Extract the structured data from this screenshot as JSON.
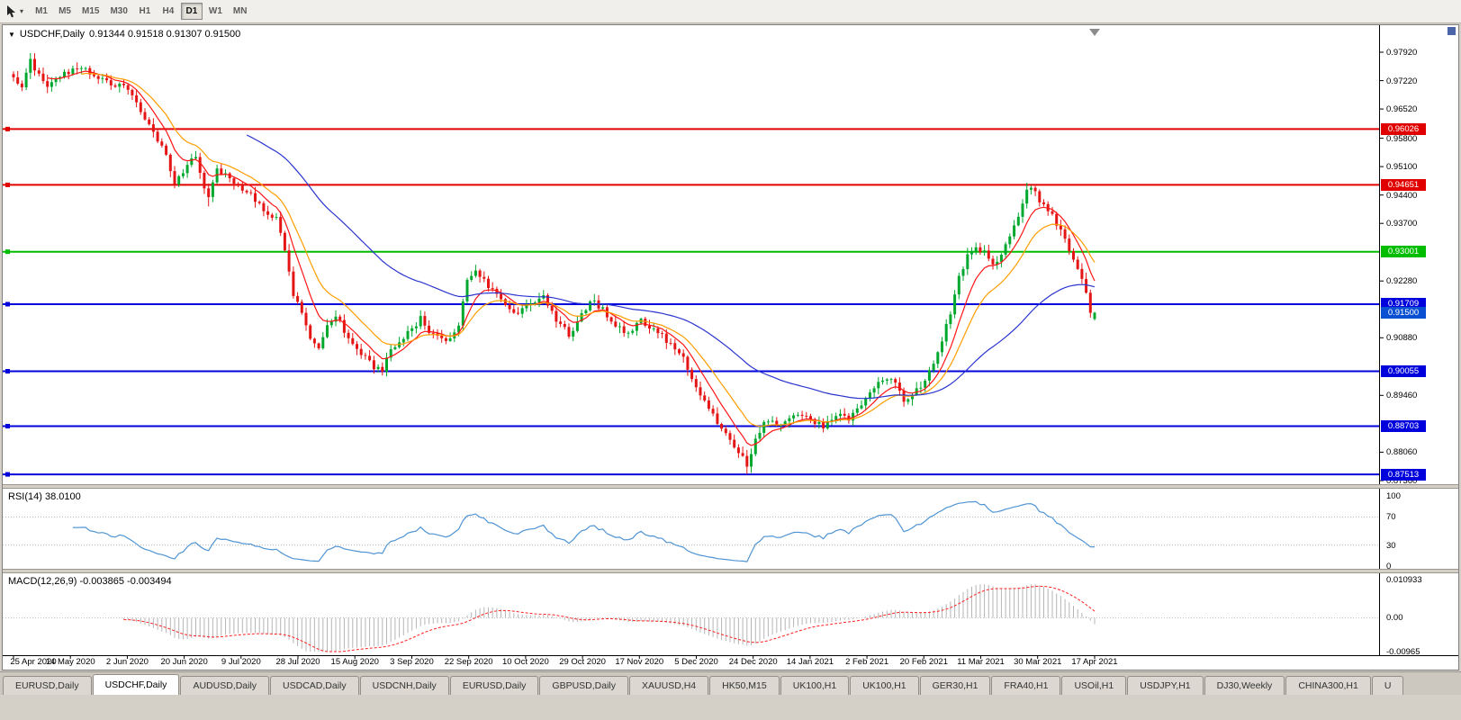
{
  "toolbar": {
    "timeframes": [
      "M1",
      "M5",
      "M15",
      "M30",
      "H1",
      "H4",
      "D1",
      "W1",
      "MN"
    ],
    "active_timeframe": "D1"
  },
  "chart": {
    "title": "USDCHF,Daily",
    "ohlc_readout": "0.91344 0.91518 0.91307 0.91500",
    "current_price_label": "0.91500",
    "current_price_value": 0.915,
    "current_price_color": "#0a50d2",
    "y_axis_ticks": [
      "0.97920",
      "0.97220",
      "0.96520",
      "0.95800",
      "0.95100",
      "0.94400",
      "0.93700",
      "0.92280",
      "0.90880",
      "0.89460",
      "0.88060",
      "0.87360"
    ]
  },
  "rsi_panel": {
    "label": "RSI(14) 38.0100",
    "axis_labels": [
      "100",
      "70",
      "30",
      "0"
    ]
  },
  "macd_panel": {
    "label": "MACD(12,26,9) -0.003865 -0.003494",
    "axis_labels": [
      "0.010933",
      "0.00",
      "-0.00965"
    ]
  },
  "tabs": [
    {
      "label": "EURUSD,Daily",
      "active": false
    },
    {
      "label": "USDCHF,Daily",
      "active": true
    },
    {
      "label": "AUDUSD,Daily",
      "active": false
    },
    {
      "label": "USDCAD,Daily",
      "active": false
    },
    {
      "label": "USDCNH,Daily",
      "active": false
    },
    {
      "label": "EURUSD,Daily",
      "active": false
    },
    {
      "label": "GBPUSD,Daily",
      "active": false
    },
    {
      "label": "XAUUSD,H4",
      "active": false
    },
    {
      "label": "HK50,M15",
      "active": false
    },
    {
      "label": "UK100,H1",
      "active": false
    },
    {
      "label": "UK100,H1",
      "active": false
    },
    {
      "label": "GER30,H1",
      "active": false
    },
    {
      "label": "FRA40,H1",
      "active": false
    },
    {
      "label": "USOil,H1",
      "active": false
    },
    {
      "label": "USDJPY,H1",
      "active": false
    },
    {
      "label": "DJ30,Weekly",
      "active": false
    },
    {
      "label": "CHINA300,H1",
      "active": false
    },
    {
      "label": "U",
      "active": false
    }
  ],
  "chart_data": {
    "type": "candlestick",
    "symbol": "USDCHF",
    "timeframe": "Daily",
    "candle_count": 256,
    "y_range": {
      "top": 0.9792,
      "bottom": 0.8736
    },
    "x_date_labels": [
      "25 Apr 2020",
      "14 May 2020",
      "2 Jun 2020",
      "20 Jun 2020",
      "9 Jul 2020",
      "28 Jul 2020",
      "15 Aug 2020",
      "3 Sep 2020",
      "22 Sep 2020",
      "10 Oct 2020",
      "29 Oct 2020",
      "17 Nov 2020",
      "5 Dec 2020",
      "24 Dec 2020",
      "14 Jan 2021",
      "2 Feb 2021",
      "20 Feb 2021",
      "11 Mar 2021",
      "30 Mar 2021",
      "17 Apr 2021"
    ],
    "ohlc_last": {
      "open": 0.91344,
      "high": 0.91518,
      "low": 0.91307,
      "close": 0.915
    },
    "colors": {
      "up": "#00a82e",
      "down": "#e51515"
    },
    "close_anchors": [
      [
        0,
        0.973
      ],
      [
        2,
        0.9704
      ],
      [
        4,
        0.9768
      ],
      [
        6,
        0.9738
      ],
      [
        8,
        0.9706
      ],
      [
        12,
        0.9742
      ],
      [
        17,
        0.9748
      ],
      [
        22,
        0.9716
      ],
      [
        27,
        0.97
      ],
      [
        31,
        0.963
      ],
      [
        35,
        0.9562
      ],
      [
        38,
        0.9472
      ],
      [
        40,
        0.9496
      ],
      [
        43,
        0.9536
      ],
      [
        46,
        0.9428
      ],
      [
        48,
        0.9502
      ],
      [
        51,
        0.9482
      ],
      [
        53,
        0.9466
      ],
      [
        56,
        0.9442
      ],
      [
        59,
        0.9406
      ],
      [
        62,
        0.9382
      ],
      [
        64,
        0.9302
      ],
      [
        66,
        0.9196
      ],
      [
        68,
        0.9152
      ],
      [
        70,
        0.9082
      ],
      [
        72,
        0.9062
      ],
      [
        74,
        0.9126
      ],
      [
        76,
        0.9146
      ],
      [
        79,
        0.9086
      ],
      [
        82,
        0.9052
      ],
      [
        85,
        0.9018
      ],
      [
        87,
        0.9008
      ],
      [
        89,
        0.9056
      ],
      [
        93,
        0.9098
      ],
      [
        96,
        0.9136
      ],
      [
        99,
        0.9092
      ],
      [
        102,
        0.9076
      ],
      [
        105,
        0.9122
      ],
      [
        107,
        0.9236
      ],
      [
        109,
        0.9258
      ],
      [
        111,
        0.9232
      ],
      [
        113,
        0.9202
      ],
      [
        116,
        0.9168
      ],
      [
        119,
        0.915
      ],
      [
        122,
        0.9176
      ],
      [
        125,
        0.919
      ],
      [
        128,
        0.9132
      ],
      [
        131,
        0.9096
      ],
      [
        134,
        0.9142
      ],
      [
        136,
        0.9182
      ],
      [
        139,
        0.916
      ],
      [
        142,
        0.9118
      ],
      [
        145,
        0.91
      ],
      [
        148,
        0.9132
      ],
      [
        151,
        0.911
      ],
      [
        154,
        0.9082
      ],
      [
        157,
        0.9056
      ],
      [
        160,
        0.8992
      ],
      [
        163,
        0.8932
      ],
      [
        166,
        0.8882
      ],
      [
        168,
        0.8856
      ],
      [
        170,
        0.8822
      ],
      [
        172,
        0.879
      ],
      [
        173,
        0.8764
      ],
      [
        175,
        0.8846
      ],
      [
        178,
        0.8886
      ],
      [
        181,
        0.8868
      ],
      [
        184,
        0.8902
      ],
      [
        188,
        0.8892
      ],
      [
        191,
        0.8866
      ],
      [
        194,
        0.8902
      ],
      [
        197,
        0.8882
      ],
      [
        201,
        0.8938
      ],
      [
        204,
        0.8982
      ],
      [
        207,
        0.8994
      ],
      [
        210,
        0.8932
      ],
      [
        213,
        0.8964
      ],
      [
        215,
        0.898
      ],
      [
        217,
        0.9032
      ],
      [
        219,
        0.9084
      ],
      [
        221,
        0.9152
      ],
      [
        223,
        0.9234
      ],
      [
        225,
        0.9294
      ],
      [
        227,
        0.9314
      ],
      [
        229,
        0.9296
      ],
      [
        231,
        0.9264
      ],
      [
        233,
        0.9296
      ],
      [
        235,
        0.9332
      ],
      [
        237,
        0.9392
      ],
      [
        239,
        0.9448
      ],
      [
        240,
        0.9462
      ],
      [
        242,
        0.9428
      ],
      [
        244,
        0.9402
      ],
      [
        246,
        0.937
      ],
      [
        248,
        0.9332
      ],
      [
        250,
        0.9284
      ],
      [
        252,
        0.923
      ],
      [
        254,
        0.9156
      ],
      [
        255,
        0.915
      ]
    ],
    "forced_extremes": [
      {
        "i": 4,
        "high": 0.979
      },
      {
        "i": 46,
        "low": 0.9412
      },
      {
        "i": 109,
        "high": 0.9268
      },
      {
        "i": 173,
        "low": 0.8752
      },
      {
        "i": 239,
        "high": 0.947
      }
    ],
    "moving_averages": [
      {
        "name": "ma-fast",
        "period": 8,
        "color": "#ff1515"
      },
      {
        "name": "ma-medium",
        "period": 16,
        "color": "#ff9d00"
      },
      {
        "name": "ma-slow",
        "period": 55,
        "color": "#2b35cf"
      }
    ],
    "horizontal_levels": [
      {
        "value": 0.96026,
        "label": "0.96026",
        "color": "#e00000"
      },
      {
        "value": 0.94651,
        "label": "0.94651",
        "color": "#e00000"
      },
      {
        "value": 0.93001,
        "label": "0.93001",
        "color": "#00bd00"
      },
      {
        "value": 0.91709,
        "label": "0.91709",
        "color": "#0000dc"
      },
      {
        "value": 0.90055,
        "label": "0.90055",
        "color": "#0000dc"
      },
      {
        "value": 0.88703,
        "label": "0.88703",
        "color": "#0000dc"
      },
      {
        "value": 0.87513,
        "label": "0.87513",
        "color": "#0000dc"
      }
    ],
    "indicators": {
      "rsi": {
        "period": 14,
        "current": 38.01,
        "color": "#4f94d4",
        "levels": [
          70,
          30
        ]
      },
      "macd": {
        "fast": 12,
        "slow": 26,
        "signal": 9,
        "current_main": -0.003865,
        "current_signal": -0.003494,
        "scale_max": 0.010933,
        "scale_min": -0.00965,
        "hist_color": "#b5b5b5",
        "signal_color": "#ff2020"
      }
    }
  }
}
